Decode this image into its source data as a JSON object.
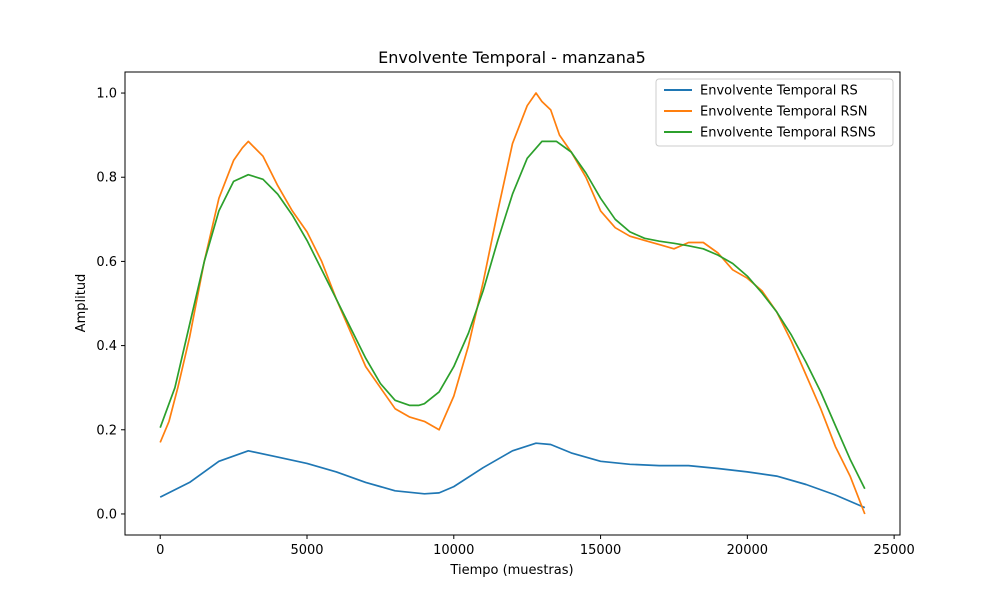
{
  "chart_data": {
    "type": "line",
    "title": "Envolvente Temporal - manzana5",
    "xlabel": "Tiempo (muestras)",
    "ylabel": "Amplitud",
    "xlim": [
      -1200,
      25200
    ],
    "ylim": [
      -0.05,
      1.05
    ],
    "xticks": [
      0,
      5000,
      10000,
      15000,
      20000,
      25000
    ],
    "yticks": [
      0.0,
      0.2,
      0.4,
      0.6,
      0.8,
      1.0
    ],
    "xtick_labels": [
      "0",
      "5000",
      "10000",
      "15000",
      "20000",
      "25000"
    ],
    "ytick_labels": [
      "0.0",
      "0.2",
      "0.4",
      "0.6",
      "0.8",
      "1.0"
    ],
    "grid": false,
    "legend_position": "top-right",
    "series": [
      {
        "name": "Envolvente Temporal RS",
        "color": "#1f77b4",
        "x": [
          0,
          1000,
          2000,
          3000,
          4000,
          5000,
          6000,
          7000,
          8000,
          9000,
          9500,
          10000,
          11000,
          12000,
          12800,
          13300,
          14000,
          15000,
          16000,
          17000,
          18000,
          19000,
          20000,
          21000,
          22000,
          23000,
          24000
        ],
        "y": [
          0.04,
          0.075,
          0.125,
          0.15,
          0.135,
          0.12,
          0.1,
          0.075,
          0.055,
          0.048,
          0.05,
          0.065,
          0.11,
          0.15,
          0.168,
          0.165,
          0.145,
          0.125,
          0.118,
          0.115,
          0.115,
          0.108,
          0.1,
          0.09,
          0.07,
          0.045,
          0.015
        ]
      },
      {
        "name": "Envolvente Temporal RSN",
        "color": "#ff7f0e",
        "x": [
          0,
          300,
          600,
          1000,
          1500,
          2000,
          2500,
          2800,
          3000,
          3500,
          4000,
          4500,
          5000,
          5500,
          6000,
          6500,
          7000,
          7500,
          8000,
          8500,
          9000,
          9500,
          10000,
          10500,
          11000,
          11500,
          12000,
          12500,
          12800,
          13000,
          13300,
          13600,
          14000,
          14500,
          15000,
          15500,
          16000,
          16500,
          17000,
          17500,
          18000,
          18500,
          19000,
          19500,
          20000,
          20500,
          21000,
          21500,
          22000,
          22500,
          23000,
          23500,
          24000
        ],
        "y": [
          0.17,
          0.22,
          0.3,
          0.42,
          0.6,
          0.75,
          0.84,
          0.87,
          0.885,
          0.85,
          0.78,
          0.72,
          0.67,
          0.6,
          0.51,
          0.43,
          0.35,
          0.3,
          0.25,
          0.23,
          0.22,
          0.2,
          0.28,
          0.4,
          0.55,
          0.72,
          0.88,
          0.97,
          1.0,
          0.98,
          0.96,
          0.9,
          0.86,
          0.8,
          0.72,
          0.68,
          0.66,
          0.65,
          0.64,
          0.63,
          0.645,
          0.645,
          0.62,
          0.58,
          0.56,
          0.53,
          0.48,
          0.41,
          0.33,
          0.25,
          0.16,
          0.09,
          0.0
        ]
      },
      {
        "name": "Envolvente Temporal RSNS",
        "color": "#2ca02c",
        "x": [
          0,
          500,
          1000,
          1500,
          2000,
          2500,
          3000,
          3500,
          4000,
          4500,
          5000,
          5500,
          6000,
          6500,
          7000,
          7500,
          8000,
          8500,
          8800,
          9000,
          9500,
          10000,
          10500,
          11000,
          11500,
          12000,
          12500,
          13000,
          13500,
          14000,
          14500,
          15000,
          15500,
          16000,
          16500,
          17000,
          17500,
          18000,
          18500,
          19000,
          19500,
          20000,
          20500,
          21000,
          21500,
          22000,
          22500,
          23000,
          23500,
          24000
        ],
        "y": [
          0.205,
          0.3,
          0.45,
          0.6,
          0.72,
          0.79,
          0.806,
          0.795,
          0.76,
          0.71,
          0.65,
          0.58,
          0.51,
          0.44,
          0.37,
          0.31,
          0.27,
          0.258,
          0.258,
          0.262,
          0.29,
          0.35,
          0.43,
          0.53,
          0.65,
          0.76,
          0.845,
          0.885,
          0.885,
          0.86,
          0.81,
          0.75,
          0.7,
          0.67,
          0.655,
          0.648,
          0.643,
          0.637,
          0.63,
          0.615,
          0.595,
          0.565,
          0.525,
          0.48,
          0.425,
          0.36,
          0.29,
          0.21,
          0.13,
          0.06
        ]
      }
    ]
  }
}
